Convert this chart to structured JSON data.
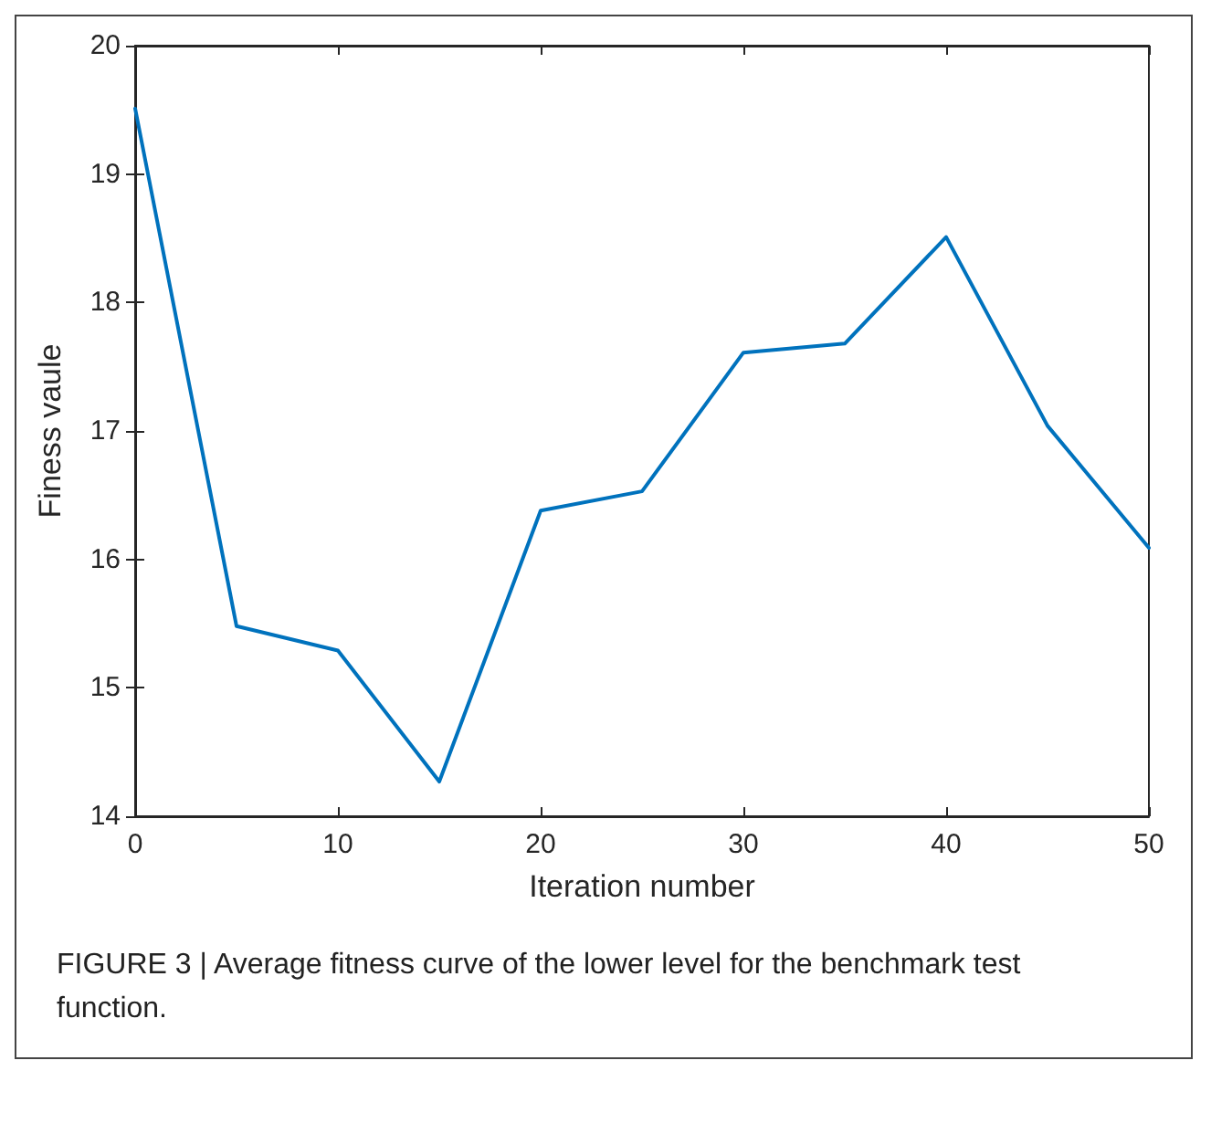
{
  "chart_data": {
    "type": "line",
    "xlabel": "Iteration number",
    "ylabel": "Finess vaule",
    "annotations": [
      "FIGURE 3 | Average fitness curve of the lower level for the benchmark test function."
    ],
    "x": [
      0,
      5,
      10,
      15,
      20,
      25,
      30,
      35,
      40,
      45,
      50
    ],
    "series": [
      {
        "color": "#0072bd",
        "values": [
          19.51,
          15.48,
          15.29,
          14.27,
          16.38,
          16.53,
          17.61,
          17.68,
          18.51,
          17.04,
          16.09
        ]
      }
    ],
    "xlim": [
      0,
      50
    ],
    "xticks": [
      0,
      10,
      20,
      30,
      40,
      50
    ],
    "ylim": [
      14,
      20
    ],
    "yticks": [
      14,
      15,
      16,
      17,
      18,
      19,
      20
    ],
    "marker": "none",
    "line_style": "solid"
  }
}
